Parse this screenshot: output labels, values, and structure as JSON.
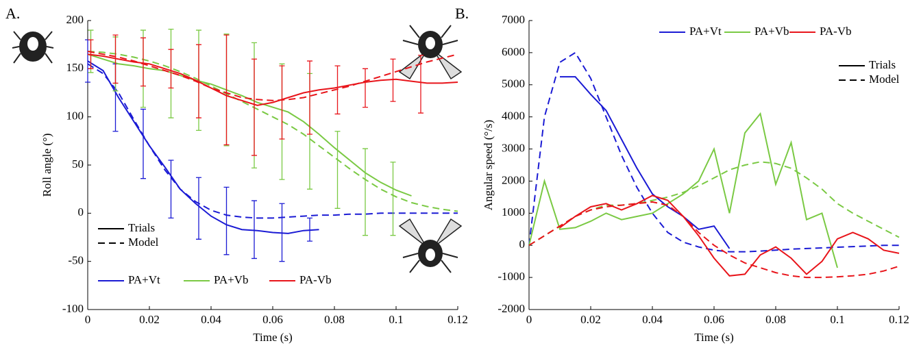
{
  "chart_data": [
    {
      "type": "line",
      "panel_label": "A.",
      "xlabel": "Time (s)",
      "ylabel": "Roll angle (°)",
      "xlim": [
        0,
        0.12
      ],
      "ylim": [
        -100,
        200
      ],
      "xticks": [
        0,
        0.02,
        0.04,
        0.06,
        0.08,
        0.1,
        0.12
      ],
      "yticks": [
        -100,
        -50,
        0,
        50,
        100,
        150,
        200
      ],
      "legend": "lower left",
      "style_legend": {
        "solid": "Trials",
        "dashed": "Model"
      },
      "x": [
        0,
        0.005,
        0.01,
        0.015,
        0.02,
        0.025,
        0.03,
        0.035,
        0.04,
        0.045,
        0.05,
        0.055,
        0.06,
        0.065,
        0.07,
        0.075,
        0.08,
        0.085,
        0.09,
        0.095,
        0.1,
        0.105,
        0.11,
        0.115,
        0.12
      ],
      "series": [
        {
          "name": "PA+Vt",
          "color": "#1a1ad4",
          "trials": [
            158,
            148,
            120,
            95,
            70,
            48,
            25,
            10,
            -3,
            -12,
            -17,
            -18,
            -20,
            -21,
            -18,
            -17,
            null,
            null,
            null,
            null,
            null,
            null,
            null,
            null,
            null
          ],
          "model": [
            155,
            145,
            125,
            97,
            70,
            45,
            25,
            12,
            3,
            -2,
            -4,
            -5,
            -5,
            -4,
            -3,
            -2,
            -2,
            -1,
            -1,
            0,
            0,
            0,
            0,
            0,
            0
          ],
          "error_x": [
            0,
            0.009,
            0.018,
            0.027,
            0.036,
            0.045,
            0.054,
            0.063,
            0.072
          ],
          "error_center": [
            158,
            120,
            72,
            25,
            5,
            -8,
            -17,
            -20,
            -17
          ],
          "errors": [
            22,
            35,
            36,
            30,
            32,
            35,
            30,
            30,
            12
          ]
        },
        {
          "name": "PA+Vb",
          "color": "#7ac943",
          "trials": [
            165,
            160,
            155,
            153,
            150,
            148,
            143,
            138,
            134,
            128,
            122,
            115,
            110,
            105,
            95,
            82,
            68,
            55,
            42,
            32,
            24,
            18,
            null,
            null,
            null
          ],
          "model": [
            168,
            167,
            165,
            162,
            158,
            153,
            147,
            140,
            132,
            124,
            116,
            108,
            100,
            92,
            82,
            70,
            58,
            46,
            35,
            25,
            17,
            11,
            7,
            4,
            2
          ],
          "error_x": [
            0.001,
            0.009,
            0.018,
            0.027,
            0.036,
            0.045,
            0.054,
            0.063,
            0.072,
            0.081,
            0.09,
            0.099
          ],
          "error_center": [
            168,
            155,
            150,
            145,
            138,
            128,
            112,
            95,
            85,
            45,
            22,
            15
          ],
          "errors": [
            22,
            28,
            40,
            46,
            52,
            58,
            65,
            60,
            60,
            40,
            45,
            38
          ]
        },
        {
          "name": "PA-Vb",
          "color": "#e8141a",
          "trials": [
            165,
            163,
            160,
            157,
            155,
            150,
            145,
            138,
            130,
            122,
            117,
            112,
            115,
            120,
            125,
            128,
            130,
            133,
            136,
            138,
            139,
            137,
            135,
            135,
            136
          ],
          "model": [
            168,
            165,
            162,
            158,
            153,
            148,
            143,
            137,
            130,
            125,
            120,
            118,
            117,
            118,
            120,
            124,
            128,
            132,
            137,
            142,
            147,
            152,
            157,
            161,
            165
          ],
          "error_x": [
            0.001,
            0.009,
            0.018,
            0.027,
            0.036,
            0.045,
            0.054,
            0.063,
            0.072,
            0.081,
            0.09,
            0.099,
            0.108
          ],
          "error_center": [
            165,
            160,
            157,
            150,
            137,
            128,
            110,
            115,
            120,
            128,
            130,
            138,
            134
          ],
          "errors": [
            15,
            25,
            25,
            20,
            38,
            57,
            50,
            38,
            38,
            25,
            20,
            22,
            30
          ]
        }
      ]
    },
    {
      "type": "line",
      "panel_label": "B.",
      "xlabel": "Time (s)",
      "ylabel": "Angular speed (°/s)",
      "xlim": [
        0,
        0.12
      ],
      "ylim": [
        -2000,
        7000
      ],
      "xticks": [
        0,
        0.02,
        0.04,
        0.06,
        0.08,
        0.1,
        0.12
      ],
      "yticks": [
        -2000,
        -1000,
        0,
        1000,
        2000,
        3000,
        4000,
        5000,
        6000,
        7000
      ],
      "legend": "upper right",
      "style_legend": {
        "solid": "Trials",
        "dashed": "Model"
      },
      "x": [
        0,
        0.005,
        0.01,
        0.015,
        0.02,
        0.025,
        0.03,
        0.035,
        0.04,
        0.045,
        0.05,
        0.055,
        0.06,
        0.065,
        0.07,
        0.075,
        0.08,
        0.085,
        0.09,
        0.095,
        0.1,
        0.105,
        0.11,
        0.115,
        0.12
      ],
      "series": [
        {
          "name": "PA+Vt",
          "color": "#1a1ad4",
          "trials": [
            null,
            null,
            5250,
            5250,
            4700,
            4200,
            3300,
            2400,
            1600,
            1200,
            900,
            500,
            600,
            -100,
            null,
            null,
            null,
            null,
            null,
            null,
            null,
            null,
            null,
            null,
            null
          ],
          "model": [
            0,
            4000,
            5700,
            6000,
            5200,
            4000,
            2800,
            1800,
            1000,
            400,
            100,
            -50,
            -150,
            -200,
            -200,
            -180,
            -150,
            -120,
            -100,
            -80,
            -60,
            -40,
            -20,
            0,
            0
          ]
        },
        {
          "name": "PA+Vb",
          "color": "#7ac943",
          "trials": [
            0,
            2000,
            500,
            550,
            750,
            1000,
            800,
            900,
            1000,
            1300,
            1600,
            2000,
            3000,
            1000,
            3500,
            4100,
            1900,
            3200,
            800,
            1000,
            -700,
            null,
            null,
            null,
            null
          ],
          "model": [
            0,
            300,
            600,
            900,
            1100,
            1250,
            1250,
            1300,
            1400,
            1500,
            1650,
            1850,
            2100,
            2350,
            2500,
            2600,
            2550,
            2400,
            2100,
            1750,
            1300,
            1000,
            750,
            500,
            250
          ]
        },
        {
          "name": "PA-Vb",
          "color": "#e8141a",
          "trials": [
            null,
            null,
            550,
            900,
            1200,
            1300,
            1100,
            1300,
            1550,
            1400,
            900,
            300,
            -400,
            -950,
            -900,
            -300,
            -50,
            -400,
            -900,
            -500,
            200,
            400,
            200,
            -150,
            -250
          ],
          "model": [
            0,
            300,
            600,
            900,
            1100,
            1200,
            1250,
            1300,
            1350,
            1250,
            900,
            400,
            0,
            -300,
            -550,
            -700,
            -850,
            -950,
            -1000,
            -1000,
            -980,
            -950,
            -900,
            -800,
            -650
          ]
        }
      ]
    }
  ]
}
